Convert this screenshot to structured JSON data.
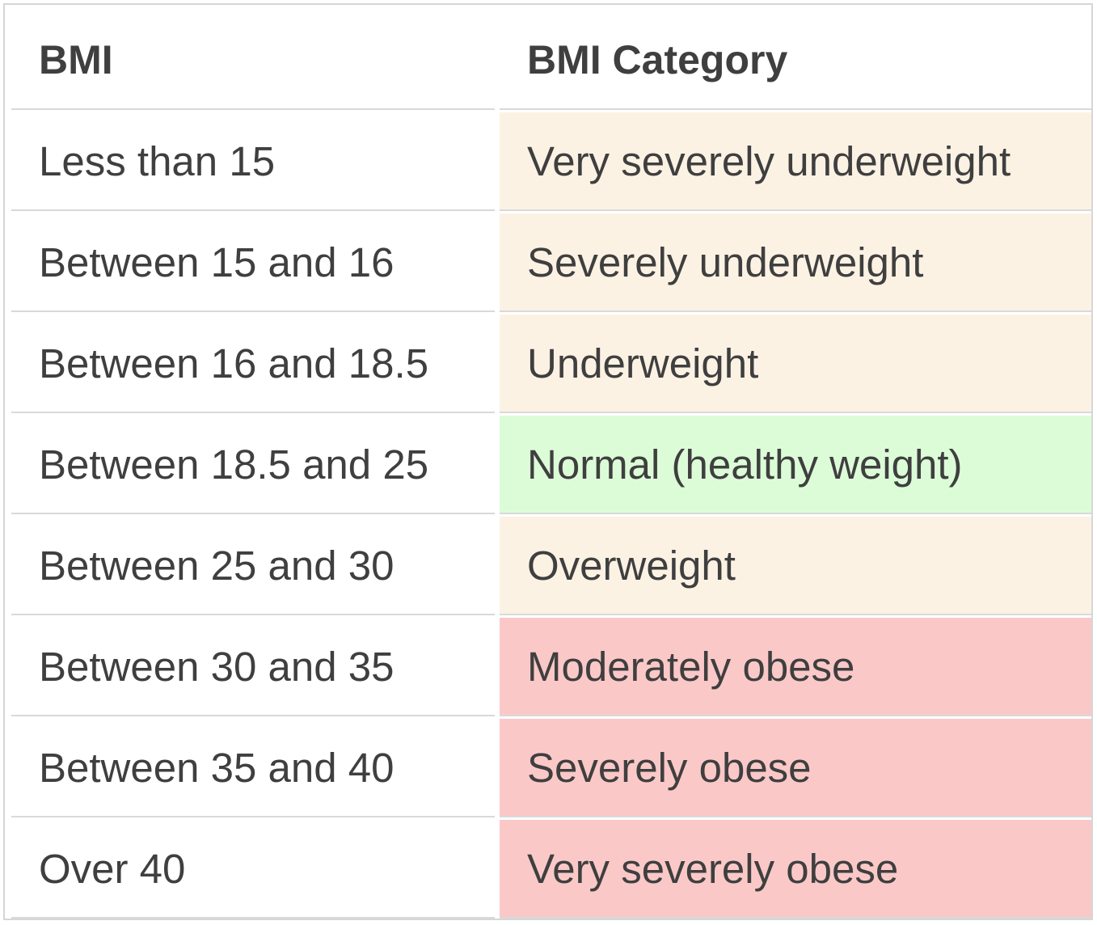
{
  "table": {
    "headers": {
      "bmi": "BMI",
      "category": "BMI Category"
    },
    "rows": [
      {
        "bmi": "Less than 15",
        "category": "Very severely underweight",
        "color": "#fcf2e4"
      },
      {
        "bmi": "Between 15 and 16",
        "category": "Severely underweight",
        "color": "#fcf2e4"
      },
      {
        "bmi": "Between 16 and 18.5",
        "category": "Underweight",
        "color": "#fcf2e4"
      },
      {
        "bmi": "Between 18.5 and 25",
        "category": "Normal (healthy weight)",
        "color": "#dcfcd8"
      },
      {
        "bmi": "Between 25 and 30",
        "category": "Overweight",
        "color": "#fcf2e4"
      },
      {
        "bmi": "Between 30 and 35",
        "category": "Moderately obese",
        "color": "#fbc8c8"
      },
      {
        "bmi": "Between 35 and 40",
        "category": "Severely obese",
        "color": "#fbc8c8"
      },
      {
        "bmi": "Over 40",
        "category": "Very severely obese",
        "color": "#fbc8c8"
      }
    ]
  }
}
